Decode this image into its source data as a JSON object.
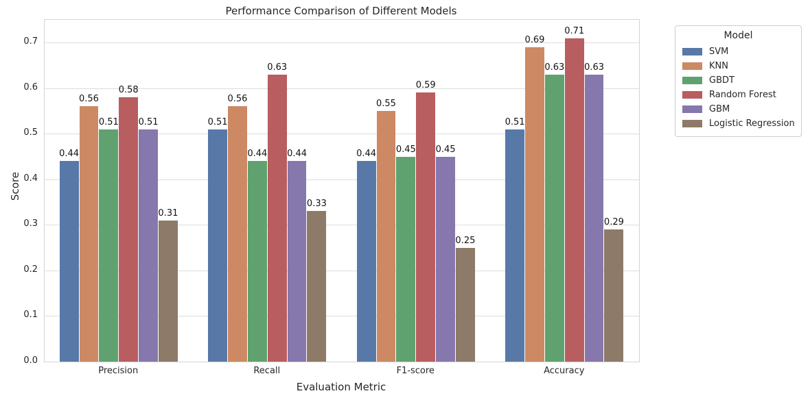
{
  "chart_data": {
    "type": "bar",
    "title": "Performance Comparison of Different Models",
    "xlabel": "Evaluation Metric",
    "ylabel": "Score",
    "categories": [
      "Precision",
      "Recall",
      "F1-score",
      "Accuracy"
    ],
    "series": [
      {
        "name": "SVM",
        "color": "#5878A8",
        "values": [
          0.44,
          0.51,
          0.44,
          0.51
        ]
      },
      {
        "name": "KNN",
        "color": "#CC8963",
        "values": [
          0.56,
          0.56,
          0.55,
          0.69
        ]
      },
      {
        "name": "GBDT",
        "color": "#60A26F",
        "values": [
          0.51,
          0.44,
          0.45,
          0.63
        ]
      },
      {
        "name": "Random Forest",
        "color": "#B85D60",
        "values": [
          0.58,
          0.63,
          0.59,
          0.71
        ]
      },
      {
        "name": "GBM",
        "color": "#8677AD",
        "values": [
          0.51,
          0.44,
          0.45,
          0.63
        ]
      },
      {
        "name": "Logistic Regression",
        "color": "#8E7A68",
        "values": [
          0.31,
          0.33,
          0.25,
          0.29
        ]
      }
    ],
    "ylim": [
      0,
      0.75
    ],
    "yticks": [
      "0.0",
      "0.1",
      "0.2",
      "0.3",
      "0.4",
      "0.5",
      "0.6",
      "0.7"
    ],
    "bar_value_labels": true,
    "grid": true,
    "grid_color": "#dcdcdc",
    "background_color": "#ffffff",
    "text_color": "#262626",
    "legend": {
      "title": "Model",
      "position": "outside-upper-right"
    }
  }
}
